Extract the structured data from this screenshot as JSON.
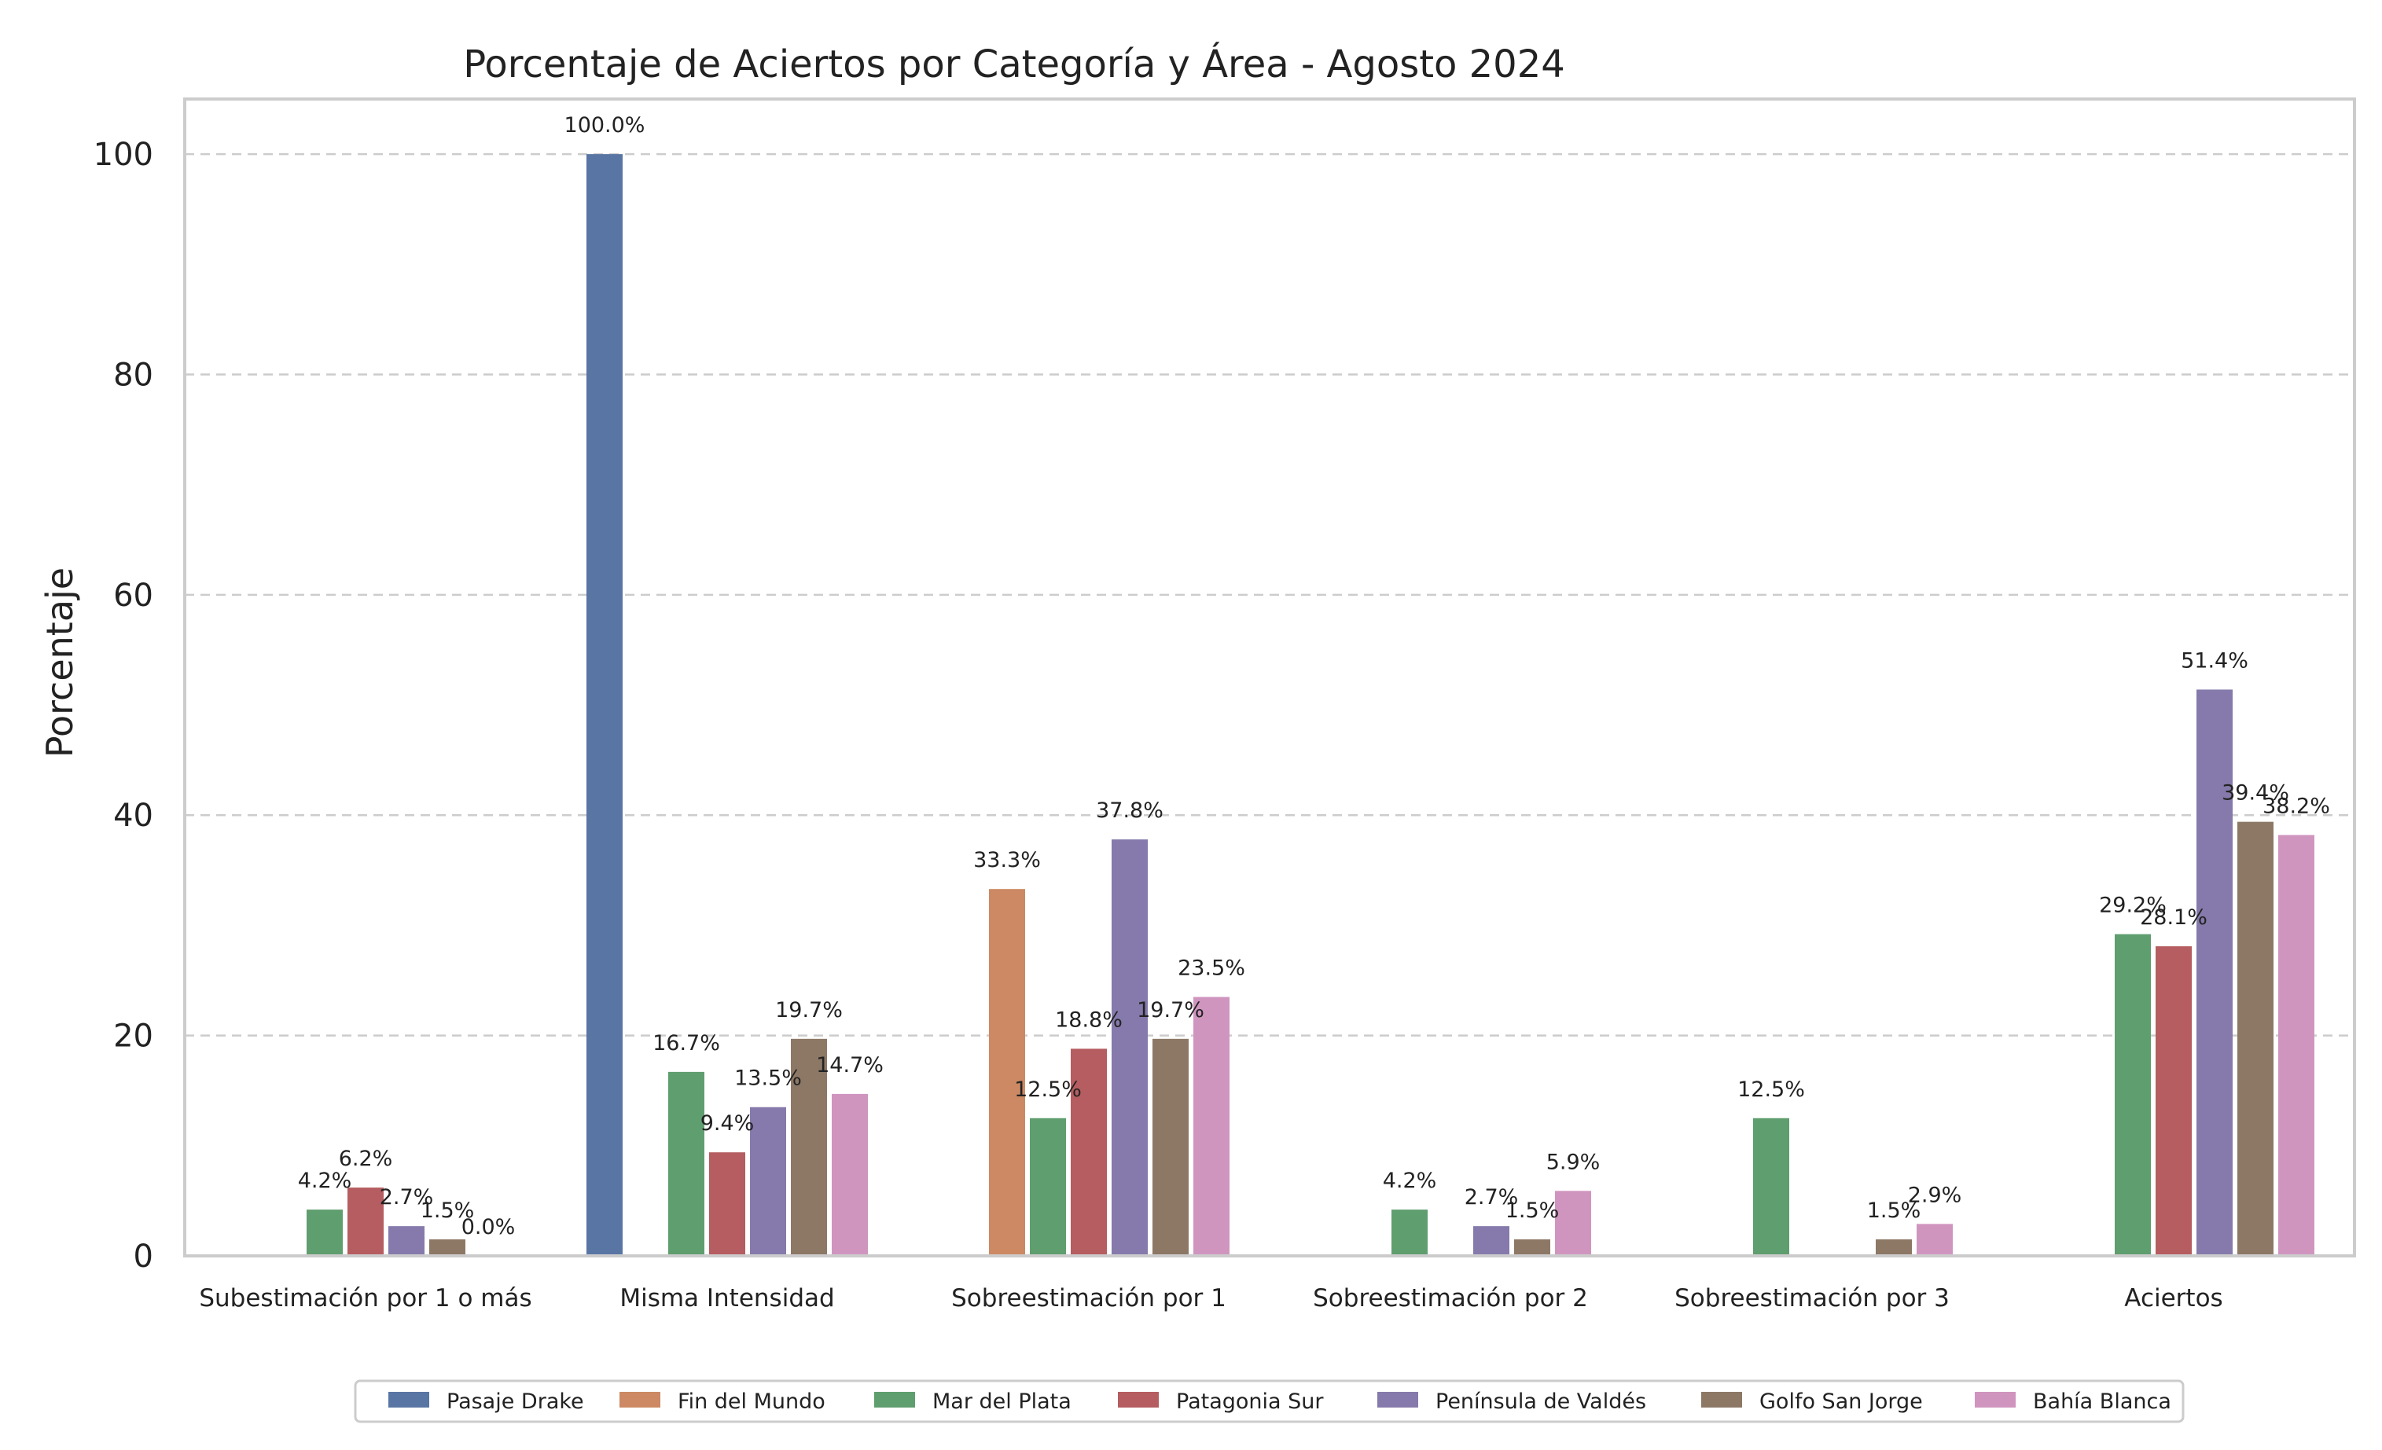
{
  "chart_data": {
    "type": "bar",
    "title": "Porcentaje de Aciertos por Categoría y Área - Agosto 2024",
    "xlabel": "",
    "ylabel": "Porcentaje",
    "ylim": [
      0,
      105
    ],
    "yticks": [
      0,
      20,
      40,
      60,
      80,
      100
    ],
    "grid": "y-dashed",
    "legend_position": "bottom-center",
    "categories": [
      "Subestimación por 1 o más",
      "Misma Intensidad",
      "Sobreestimación por 1",
      "Sobreestimación por 2",
      "Sobreestimación por 3",
      "Aciertos"
    ],
    "series": [
      {
        "name": "Pasaje Drake",
        "color": "#5975a4",
        "values": [
          null,
          100.0,
          null,
          null,
          null,
          null
        ],
        "labels": [
          "",
          "100.0%",
          "",
          "",
          "",
          ""
        ]
      },
      {
        "name": "Fin del Mundo",
        "color": "#cc8963",
        "values": [
          null,
          null,
          33.3,
          null,
          null,
          null
        ],
        "labels": [
          "",
          "",
          "33.3%",
          "",
          "",
          ""
        ]
      },
      {
        "name": "Mar del Plata",
        "color": "#5f9e6e",
        "values": [
          4.2,
          16.7,
          12.5,
          4.2,
          12.5,
          29.2
        ],
        "labels": [
          "4.2%",
          "16.7%",
          "12.5%",
          "4.2%",
          "12.5%",
          "29.2%"
        ]
      },
      {
        "name": "Patagonia Sur",
        "color": "#b55d60",
        "values": [
          6.2,
          9.4,
          18.8,
          0,
          0,
          28.1
        ],
        "labels": [
          "6.2%",
          "9.4%",
          "18.8%",
          "",
          "",
          "28.1%"
        ]
      },
      {
        "name": "Península de Valdés",
        "color": "#857aab",
        "values": [
          2.7,
          13.5,
          37.8,
          2.7,
          0,
          51.4
        ],
        "labels": [
          "2.7%",
          "13.5%",
          "37.8%",
          "2.7%",
          "",
          "51.4%"
        ]
      },
      {
        "name": "Golfo San Jorge",
        "color": "#8d7866",
        "values": [
          1.5,
          19.7,
          19.7,
          1.5,
          1.5,
          39.4
        ],
        "labels": [
          "1.5%",
          "19.7%",
          "19.7%",
          "1.5%",
          "1.5%",
          "39.4%"
        ]
      },
      {
        "name": "Bahía Blanca",
        "color": "#d095bf",
        "values": [
          0.0,
          14.7,
          23.5,
          5.9,
          2.9,
          38.2
        ],
        "labels": [
          "0.0%",
          "14.7%",
          "23.5%",
          "5.9%",
          "2.9%",
          "38.2%"
        ]
      }
    ]
  }
}
